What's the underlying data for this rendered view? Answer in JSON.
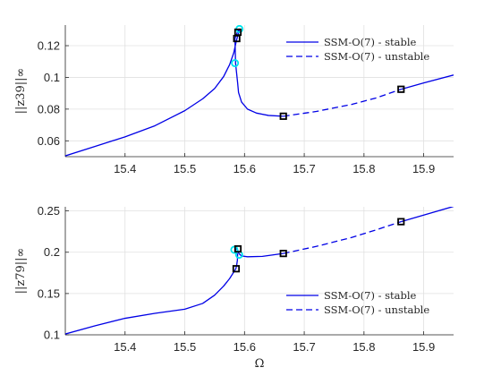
{
  "colors": {
    "curve": "#0000e6",
    "stability_marker": "#00e5ee",
    "bifurcation_marker": "#000000",
    "grid": "#e0e0e0",
    "axis": "#262626"
  },
  "chart_data": [
    {
      "type": "line",
      "ylabel": "||z_39||_∞",
      "ylabel_text": "||z39||∞",
      "xlim": [
        15.3,
        15.95
      ],
      "ylim": [
        0.05,
        0.133
      ],
      "xticks": [
        15.4,
        15.5,
        15.6,
        15.7,
        15.8,
        15.9
      ],
      "xtick_labels": [
        "15.4",
        "15.5",
        "15.6",
        "15.7",
        "15.8",
        "15.9"
      ],
      "yticks": [
        0.06,
        0.08,
        0.1,
        0.12
      ],
      "ytick_labels": [
        "0.06",
        "0.08",
        "0.1",
        "0.12"
      ],
      "grid": true,
      "legend_position": "top-right",
      "series": [
        {
          "name": "SSM-O(7) - stable",
          "style": "solid",
          "x": [
            15.3,
            15.35,
            15.4,
            15.45,
            15.5,
            15.53,
            15.55,
            15.565,
            15.575,
            15.582,
            15.586,
            15.59,
            15.5915,
            15.589,
            15.584,
            15.585,
            15.5885,
            15.59,
            15.595,
            15.605,
            15.62,
            15.64,
            15.665
          ],
          "y": [
            0.0505,
            0.0565,
            0.0625,
            0.0695,
            0.079,
            0.0865,
            0.093,
            0.1005,
            0.108,
            0.1155,
            0.1225,
            0.128,
            0.1305,
            0.1295,
            0.1245,
            0.109,
            0.0965,
            0.0905,
            0.0845,
            0.08,
            0.0775,
            0.076,
            0.0755
          ]
        },
        {
          "name": "SSM-O(7) - unstable",
          "style": "dashed",
          "x": [
            15.665,
            15.72,
            15.78,
            15.82,
            15.862
          ],
          "y": [
            0.0755,
            0.0785,
            0.083,
            0.087,
            0.0925
          ]
        },
        {
          "name": "",
          "style": "solid",
          "legend": false,
          "x": [
            15.862,
            15.9,
            15.95
          ],
          "y": [
            0.0925,
            0.0965,
            0.1015
          ]
        }
      ],
      "markers": [
        {
          "kind": "stability",
          "x": 15.584,
          "y": 0.109
        },
        {
          "kind": "stability",
          "x": 15.5915,
          "y": 0.1305
        },
        {
          "kind": "bifurcation",
          "x": 15.589,
          "y": 0.1285
        },
        {
          "kind": "bifurcation",
          "x": 15.587,
          "y": 0.1245
        },
        {
          "kind": "bifurcation",
          "x": 15.665,
          "y": 0.0755
        },
        {
          "kind": "bifurcation",
          "x": 15.862,
          "y": 0.0925
        }
      ]
    },
    {
      "type": "line",
      "ylabel": "||z_79||_∞",
      "ylabel_text": "||z79||∞",
      "xlabel": "Ω",
      "xlim": [
        15.3,
        15.95
      ],
      "ylim": [
        0.1,
        0.255
      ],
      "xticks": [
        15.4,
        15.5,
        15.6,
        15.7,
        15.8,
        15.9
      ],
      "xtick_labels": [
        "15.4",
        "15.5",
        "15.6",
        "15.7",
        "15.8",
        "15.9"
      ],
      "yticks": [
        0.1,
        0.15,
        0.2,
        0.25
      ],
      "ytick_labels": [
        "0.1",
        "0.15",
        "0.2",
        "0.25"
      ],
      "grid": true,
      "legend_position": "bottom-right",
      "series": [
        {
          "name": "SSM-O(7) - stable",
          "style": "solid",
          "x": [
            15.3,
            15.35,
            15.4,
            15.45,
            15.5,
            15.53,
            15.55,
            15.565,
            15.575,
            15.582,
            15.5855,
            15.587,
            15.588,
            15.5885,
            15.586,
            15.584,
            15.5875,
            15.5905,
            15.595,
            15.605,
            15.63,
            15.665
          ],
          "y": [
            0.101,
            0.111,
            0.12,
            0.126,
            0.131,
            0.138,
            0.148,
            0.159,
            0.168,
            0.176,
            0.18,
            0.185,
            0.19,
            0.197,
            0.201,
            0.203,
            0.2045,
            0.1985,
            0.1955,
            0.1945,
            0.195,
            0.1985
          ]
        },
        {
          "name": "SSM-O(7) - unstable",
          "style": "dashed",
          "x": [
            15.665,
            15.72,
            15.78,
            15.82,
            15.862
          ],
          "y": [
            0.1985,
            0.207,
            0.218,
            0.227,
            0.237
          ]
        },
        {
          "name": "",
          "style": "solid",
          "legend": false,
          "x": [
            15.862,
            15.9,
            15.95
          ],
          "y": [
            0.237,
            0.245,
            0.2555
          ]
        }
      ],
      "markers": [
        {
          "kind": "stability",
          "x": 15.583,
          "y": 0.203
        },
        {
          "kind": "stability",
          "x": 15.591,
          "y": 0.197
        },
        {
          "kind": "bifurcation",
          "x": 15.586,
          "y": 0.18
        },
        {
          "kind": "bifurcation",
          "x": 15.589,
          "y": 0.204
        },
        {
          "kind": "bifurcation",
          "x": 15.665,
          "y": 0.1985
        },
        {
          "kind": "bifurcation",
          "x": 15.862,
          "y": 0.237
        }
      ]
    }
  ]
}
